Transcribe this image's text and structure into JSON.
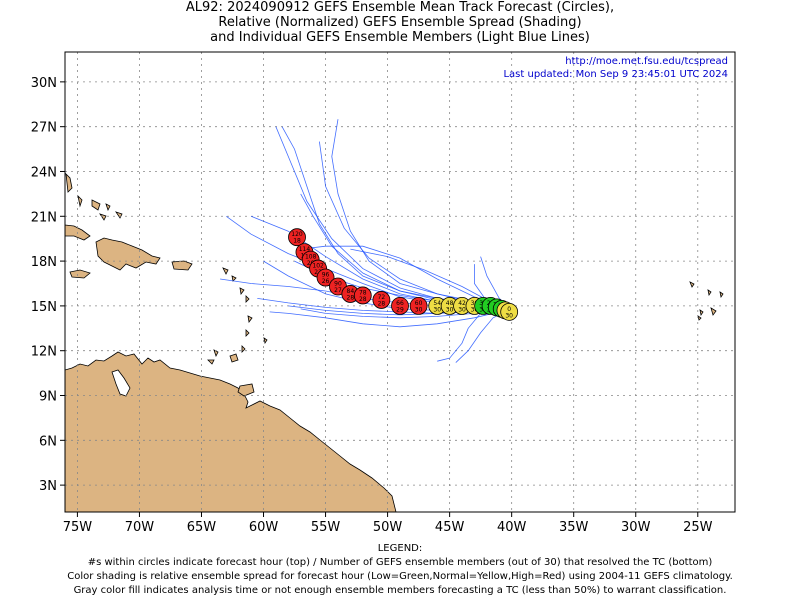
{
  "title_lines": [
    "AL92: 2024090912 GEFS Ensemble Mean Track Forecast (Circles),",
    "Relative (Normalized) GEFS Ensemble Spread (Shading)",
    "and Individual GEFS Ensemble Members (Light Blue Lines)"
  ],
  "credit": {
    "url": "http://moe.met.fsu.edu/tcspread",
    "updated": "Last updated: Mon Sep 9 23:45:01 UTC 2024"
  },
  "latitude_labels": [
    {
      "text": "30N",
      "lat": 30
    },
    {
      "text": "27N",
      "lat": 27
    },
    {
      "text": "24N",
      "lat": 24
    },
    {
      "text": "21N",
      "lat": 21
    },
    {
      "text": "18N",
      "lat": 18
    },
    {
      "text": "15N",
      "lat": 15
    },
    {
      "text": "12N",
      "lat": 12
    },
    {
      "text": "9N",
      "lat": 9
    },
    {
      "text": "6N",
      "lat": 6
    },
    {
      "text": "3N",
      "lat": 3
    }
  ],
  "longitude_labels": [
    {
      "text": "75W",
      "lon": -75
    },
    {
      "text": "70W",
      "lon": -70
    },
    {
      "text": "65W",
      "lon": -65
    },
    {
      "text": "60W",
      "lon": -60
    },
    {
      "text": "55W",
      "lon": -55
    },
    {
      "text": "50W",
      "lon": -50
    },
    {
      "text": "45W",
      "lon": -45
    },
    {
      "text": "40W",
      "lon": -40
    },
    {
      "text": "35W",
      "lon": -35
    },
    {
      "text": "30W",
      "lon": -30
    },
    {
      "text": "25W",
      "lon": -25
    }
  ],
  "map_extent": {
    "lon_min": -76.0,
    "lon_max": -22.0,
    "lat_min": 1.2,
    "lat_max": 32.0
  },
  "colors": {
    "land": "#dcb482",
    "ocean": "#ffffff",
    "coast": "#000000",
    "member_track": "#2255ff",
    "spread_low": "#22cc22",
    "spread_normal": "#eedd44",
    "spread_high": "#ee2222",
    "grid": "#888888"
  },
  "mean_track": [
    {
      "lon": -40.2,
      "lat": 14.6,
      "hour": "0",
      "members": "30",
      "spread": "normal"
    },
    {
      "lon": -40.5,
      "lat": 14.7,
      "hour": "6",
      "members": "30",
      "spread": "normal"
    },
    {
      "lon": -40.8,
      "lat": 14.8,
      "hour": "12",
      "members": "30",
      "spread": "low"
    },
    {
      "lon": -41.2,
      "lat": 14.9,
      "hour": "18",
      "members": "30",
      "spread": "low"
    },
    {
      "lon": -41.7,
      "lat": 15.0,
      "hour": "24",
      "members": "30",
      "spread": "low"
    },
    {
      "lon": -42.3,
      "lat": 15.0,
      "hour": "30",
      "members": "30",
      "spread": "low"
    },
    {
      "lon": -43.0,
      "lat": 15.0,
      "hour": "36",
      "members": "30",
      "spread": "normal"
    },
    {
      "lon": -44.0,
      "lat": 15.0,
      "hour": "42",
      "members": "30",
      "spread": "normal"
    },
    {
      "lon": -45.0,
      "lat": 15.0,
      "hour": "48",
      "members": "30",
      "spread": "normal"
    },
    {
      "lon": -46.0,
      "lat": 15.0,
      "hour": "54",
      "members": "30",
      "spread": "normal"
    },
    {
      "lon": -47.5,
      "lat": 15.0,
      "hour": "60",
      "members": "30",
      "spread": "high"
    },
    {
      "lon": -49.0,
      "lat": 15.0,
      "hour": "66",
      "members": "29",
      "spread": "high"
    },
    {
      "lon": -50.5,
      "lat": 15.4,
      "hour": "72",
      "members": "28",
      "spread": "high"
    },
    {
      "lon": -52.0,
      "lat": 15.7,
      "hour": "78",
      "members": "28",
      "spread": "high"
    },
    {
      "lon": -53.0,
      "lat": 15.8,
      "hour": "84",
      "members": "28",
      "spread": "high"
    },
    {
      "lon": -54.0,
      "lat": 16.3,
      "hour": "90",
      "members": "27",
      "spread": "high"
    },
    {
      "lon": -55.0,
      "lat": 16.9,
      "hour": "96",
      "members": "26",
      "spread": "high"
    },
    {
      "lon": -55.6,
      "lat": 17.5,
      "hour": "102",
      "members": "22",
      "spread": "high"
    },
    {
      "lon": -56.2,
      "lat": 18.1,
      "hour": "108",
      "members": "20",
      "spread": "high"
    },
    {
      "lon": -56.7,
      "lat": 18.6,
      "hour": "114",
      "members": "19",
      "spread": "high"
    },
    {
      "lon": -57.3,
      "lat": 19.6,
      "hour": "120",
      "members": "18",
      "spread": "high"
    }
  ],
  "member_tracks": [
    [
      [
        -40,
        14.8
      ],
      [
        -43,
        15.2
      ],
      [
        -46,
        15.5
      ],
      [
        -49,
        16.0
      ],
      [
        -52,
        17.0
      ],
      [
        -54,
        18.5
      ],
      [
        -55.5,
        20.5
      ],
      [
        -56.5,
        23.0
      ],
      [
        -57.5,
        25.5
      ],
      [
        -58.5,
        27.0
      ]
    ],
    [
      [
        -40,
        14.8
      ],
      [
        -43,
        15.3
      ],
      [
        -46,
        15.8
      ],
      [
        -49,
        16.5
      ],
      [
        -51.5,
        18.0
      ],
      [
        -53,
        20.0
      ],
      [
        -54,
        22.5
      ],
      [
        -54.5,
        25.0
      ],
      [
        -54,
        27.5
      ]
    ],
    [
      [
        -40,
        14.8
      ],
      [
        -43,
        15.1
      ],
      [
        -46,
        15.4
      ],
      [
        -49,
        16.0
      ],
      [
        -52,
        17.2
      ],
      [
        -54.5,
        19.0
      ],
      [
        -56,
        21.0
      ],
      [
        -57,
        22.5
      ]
    ],
    [
      [
        -40,
        14.8
      ],
      [
        -43,
        15.0
      ],
      [
        -46,
        15.0
      ],
      [
        -49,
        15.2
      ],
      [
        -52,
        15.5
      ],
      [
        -55,
        16.0
      ],
      [
        -58,
        16.3
      ],
      [
        -61,
        16.5
      ],
      [
        -63.5,
        16.8
      ]
    ],
    [
      [
        -40,
        14.8
      ],
      [
        -43,
        15.0
      ],
      [
        -46,
        15.2
      ],
      [
        -49,
        15.6
      ],
      [
        -52,
        16.5
      ],
      [
        -55,
        17.5
      ],
      [
        -58,
        18.5
      ],
      [
        -61,
        19.8
      ],
      [
        -63,
        21.0
      ]
    ],
    [
      [
        -40,
        14.8
      ],
      [
        -43,
        15.1
      ],
      [
        -46,
        15.5
      ],
      [
        -49,
        16.2
      ],
      [
        -52,
        17.5
      ],
      [
        -54.5,
        19.5
      ],
      [
        -56.5,
        22.0
      ],
      [
        -58,
        25.0
      ],
      [
        -59,
        27.0
      ]
    ],
    [
      [
        -40,
        14.8
      ],
      [
        -43,
        14.6
      ],
      [
        -46,
        14.5
      ],
      [
        -49,
        14.6
      ],
      [
        -52,
        14.7
      ],
      [
        -55,
        14.9
      ],
      [
        -58,
        15.2
      ],
      [
        -60.5,
        15.5
      ]
    ],
    [
      [
        -40,
        14.8
      ],
      [
        -43,
        14.5
      ],
      [
        -46,
        14.3
      ],
      [
        -49,
        14.2
      ],
      [
        -52,
        14.3
      ],
      [
        -55,
        14.5
      ],
      [
        -57,
        14.8
      ]
    ],
    [
      [
        -40,
        14.8
      ],
      [
        -43,
        15.0
      ],
      [
        -46,
        15.3
      ],
      [
        -49,
        15.8
      ],
      [
        -52,
        16.8
      ],
      [
        -55,
        18.3
      ],
      [
        -58,
        20.0
      ],
      [
        -61,
        21.0
      ]
    ],
    [
      [
        -40,
        14.8
      ],
      [
        -42,
        15.3
      ],
      [
        -43,
        16.5
      ],
      [
        -43,
        17.8
      ]
    ],
    [
      [
        -40,
        14.8
      ],
      [
        -41,
        15.5
      ],
      [
        -42,
        17.0
      ],
      [
        -42.5,
        18.3
      ]
    ],
    [
      [
        -40,
        14.8
      ],
      [
        -43,
        15.6
      ],
      [
        -46,
        16.8
      ],
      [
        -49,
        18.2
      ],
      [
        -52,
        19.0
      ],
      [
        -55,
        19.0
      ],
      [
        -57,
        18.8
      ]
    ],
    [
      [
        -40,
        14.8
      ],
      [
        -42,
        15.4
      ],
      [
        -44,
        16.3
      ],
      [
        -47,
        17.4
      ],
      [
        -50,
        18.3
      ],
      [
        -53,
        18.8
      ]
    ],
    [
      [
        -40,
        14.8
      ],
      [
        -42.5,
        14.5
      ],
      [
        -43.5,
        13.5
      ],
      [
        -44,
        12.5
      ],
      [
        -45,
        11.5
      ],
      [
        -46,
        11.3
      ]
    ],
    [
      [
        -40,
        14.8
      ],
      [
        -41.5,
        14.2
      ],
      [
        -42.5,
        13.2
      ],
      [
        -43.5,
        12.0
      ],
      [
        -44.5,
        11.2
      ]
    ],
    [
      [
        -40,
        14.8
      ],
      [
        -43,
        14.2
      ],
      [
        -46,
        13.8
      ],
      [
        -49,
        13.6
      ],
      [
        -52,
        13.8
      ],
      [
        -55,
        14.2
      ],
      [
        -58,
        14.5
      ],
      [
        -59.5,
        14.6
      ]
    ],
    [
      [
        -40,
        14.8
      ],
      [
        -43,
        14.8
      ],
      [
        -46,
        14.7
      ],
      [
        -49,
        14.8
      ],
      [
        -52,
        15.2
      ],
      [
        -55,
        15.8
      ],
      [
        -58,
        17.0
      ],
      [
        -60,
        18.0
      ]
    ],
    [
      [
        -40,
        14.8
      ],
      [
        -43,
        15.2
      ],
      [
        -46,
        15.8
      ],
      [
        -49,
        16.8
      ],
      [
        -51.5,
        18.2
      ],
      [
        -53.5,
        20.2
      ],
      [
        -55,
        23.0
      ],
      [
        -55.5,
        26.0
      ]
    ],
    [
      [
        -40,
        14.8
      ],
      [
        -43,
        15.1
      ],
      [
        -46,
        15.3
      ],
      [
        -49,
        15.7
      ],
      [
        -52,
        16.2
      ],
      [
        -55,
        17.0
      ],
      [
        -57.5,
        18.0
      ]
    ],
    [
      [
        -40,
        14.8
      ],
      [
        -43,
        14.7
      ],
      [
        -46,
        14.5
      ],
      [
        -49,
        14.4
      ],
      [
        -52,
        14.5
      ],
      [
        -55,
        14.7
      ],
      [
        -58,
        15.0
      ]
    ]
  ],
  "legend": {
    "heading": "LEGEND:",
    "lines": [
      "#s within circles indicate forecast hour (top) / Number of GEFS ensemble members (out of 30) that resolved the TC (bottom)",
      "Color shading is relative ensemble spread for forecast hour (Low=Green,Normal=Yellow,High=Red) using 2004-11 GEFS climatology.",
      "Gray color fill indicates analysis time or not enough ensemble members forecasting a TC (less than 50%) to warrant classification."
    ]
  }
}
